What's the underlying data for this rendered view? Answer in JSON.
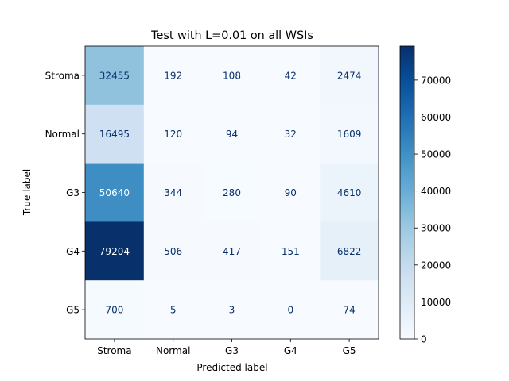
{
  "chart_data": {
    "type": "heatmap",
    "title": "Test with L=0.01 on all WSIs",
    "xlabel": "Predicted label",
    "ylabel": "True label",
    "x_categories": [
      "Stroma",
      "Normal",
      "G3",
      "G4",
      "G5"
    ],
    "y_categories": [
      "Stroma",
      "Normal",
      "G3",
      "G4",
      "G5"
    ],
    "values": [
      [
        32455,
        192,
        108,
        42,
        2474
      ],
      [
        16495,
        120,
        94,
        32,
        1609
      ],
      [
        50640,
        344,
        280,
        90,
        4610
      ],
      [
        79204,
        506,
        417,
        151,
        6822
      ],
      [
        700,
        5,
        3,
        0,
        74
      ]
    ],
    "colormap": "Blues",
    "vmin": 0,
    "vmax": 79204,
    "colorbar_ticks": [
      0,
      10000,
      20000,
      30000,
      40000,
      50000,
      60000,
      70000
    ]
  }
}
